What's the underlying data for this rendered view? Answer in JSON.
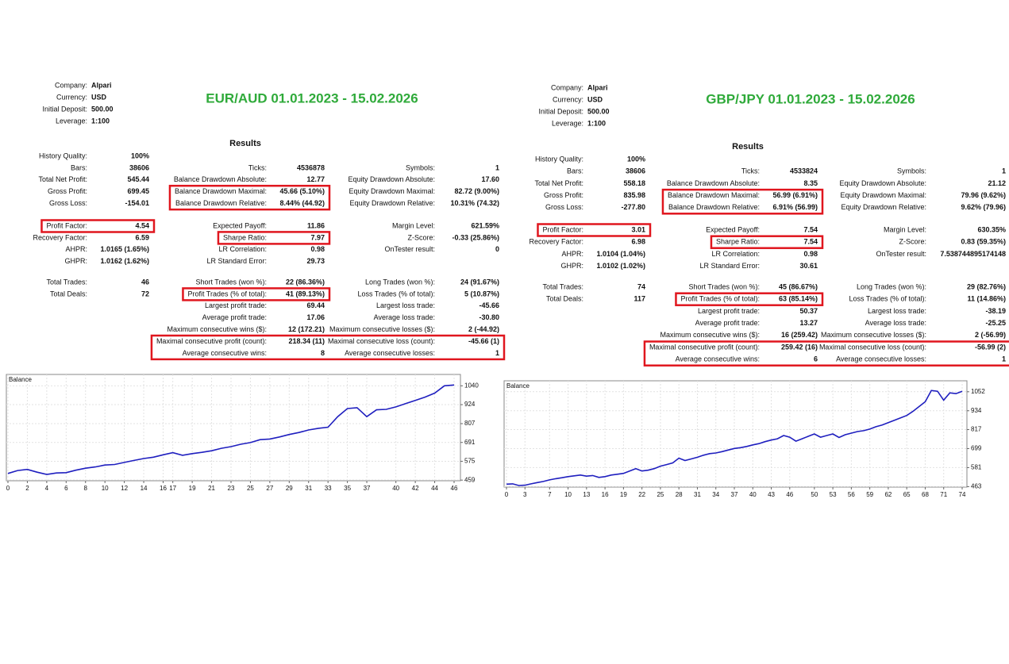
{
  "reports": [
    {
      "title": "EUR/AUD 01.01.2023 - 15.02.2026",
      "info": [
        {
          "label": "Company:",
          "value": "Alpari"
        },
        {
          "label": "Currency:",
          "value": "USD"
        },
        {
          "label": "Initial Deposit:",
          "value": "500.00"
        },
        {
          "label": "Leverage:",
          "value": "1:100"
        }
      ],
      "results_heading": "Results",
      "blocks": [
        [
          {
            "col1": {
              "label": "History Quality:",
              "value": "100%"
            }
          },
          {
            "col1": {
              "label": "Bars:",
              "value": "38606"
            },
            "col2": {
              "label": "Ticks:",
              "value": "4536878"
            },
            "col3": {
              "label": "Symbols:",
              "value": "1"
            }
          },
          {
            "col1": {
              "label": "Total Net Profit:",
              "value": "545.44"
            },
            "col2": {
              "label": "Balance Drawdown Absolute:",
              "value": "12.77"
            },
            "col3": {
              "label": "Equity Drawdown Absolute:",
              "value": "17.60"
            }
          },
          {
            "col1": {
              "label": "Gross Profit:",
              "value": "699.45"
            },
            "col2": {
              "label": "Balance Drawdown Maximal:",
              "value": "45.66 (5.10%)",
              "highlight": true
            },
            "col3": {
              "label": "Equity Drawdown Maximal:",
              "value": "82.72 (9.00%)"
            }
          },
          {
            "col1": {
              "label": "Gross Loss:",
              "value": "-154.01"
            },
            "col2": {
              "label": "Balance Drawdown Relative:",
              "value": "8.44% (44.92)",
              "highlight": true
            },
            "col3": {
              "label": "Equity Drawdown Relative:",
              "value": "10.31% (74.32)"
            }
          }
        ],
        [
          {
            "col1": {
              "label": "Profit Factor:",
              "value": "4.54",
              "highlight": true
            },
            "col2": {
              "label": "Expected Payoff:",
              "value": "11.86"
            },
            "col3": {
              "label": "Margin Level:",
              "value": "621.59%"
            }
          },
          {
            "col1": {
              "label": "Recovery Factor:",
              "value": "6.59"
            },
            "col2": {
              "label": "Sharpe Ratio:",
              "value": "7.97",
              "highlight": true
            },
            "col3": {
              "label": "Z-Score:",
              "value": "-0.33 (25.86%)"
            }
          },
          {
            "col1": {
              "label": "AHPR:",
              "value": "1.0165 (1.65%)"
            },
            "col2": {
              "label": "LR Correlation:",
              "value": "0.98"
            },
            "col3": {
              "label": "OnTester result:",
              "value": "0"
            }
          },
          {
            "col1": {
              "label": "GHPR:",
              "value": "1.0162 (1.62%)"
            },
            "col2": {
              "label": "LR Standard Error:",
              "value": "29.73"
            }
          }
        ],
        [
          {
            "col1": {
              "label": "Total Trades:",
              "value": "46"
            },
            "col2": {
              "label": "Short Trades (won %):",
              "value": "22 (86.36%)"
            },
            "col3": {
              "label": "Long Trades (won %):",
              "value": "24 (91.67%)"
            }
          },
          {
            "col1": {
              "label": "Total Deals:",
              "value": "72"
            },
            "col2": {
              "label": "Profit Trades (% of total):",
              "value": "41 (89.13%)",
              "highlight": true
            },
            "col3": {
              "label": "Loss Trades (% of total):",
              "value": "5 (10.87%)"
            }
          },
          {
            "col2": {
              "label": "Largest profit trade:",
              "value": "69.44"
            },
            "col3": {
              "label": "Largest loss trade:",
              "value": "-45.66"
            }
          },
          {
            "col2": {
              "label": "Average profit trade:",
              "value": "17.06"
            },
            "col3": {
              "label": "Average loss trade:",
              "value": "-30.80"
            }
          },
          {
            "col2": {
              "label": "Maximum consecutive wins ($):",
              "value": "12 (172.21)"
            },
            "col3": {
              "label": "Maximum consecutive losses ($):",
              "value": "2 (-44.92)"
            }
          },
          {
            "col2": {
              "label": "Maximal consecutive profit (count):",
              "value": "218.34 (11)",
              "highlight": true
            },
            "col3": {
              "label": "Maximal consecutive loss (count):",
              "value": "-45.66 (1)",
              "highlight": true
            }
          },
          {
            "col2": {
              "label": "Average consecutive wins:",
              "value": "8",
              "highlight": true
            },
            "col3": {
              "label": "Average consecutive losses:",
              "value": "1",
              "highlight": true
            }
          }
        ]
      ],
      "chart": {
        "type": "line",
        "label": "Balance",
        "color": "#1f1fbf",
        "values": [
          500,
          518,
          525,
          508,
          494,
          503,
          505,
          520,
          532,
          540,
          552,
          555,
          568,
          580,
          592,
          600,
          615,
          628,
          612,
          622,
          630,
          640,
          655,
          665,
          680,
          690,
          708,
          712,
          725,
          740,
          752,
          768,
          778,
          785,
          850,
          900,
          905,
          850,
          892,
          895,
          910,
          930,
          950,
          970,
          995,
          1040,
          1045
        ],
        "xlim": [
          0,
          46
        ],
        "xticks": [
          0,
          2,
          4,
          6,
          8,
          10,
          12,
          14,
          16,
          17,
          19,
          21,
          23,
          25,
          27,
          29,
          31,
          33,
          35,
          37,
          40,
          42,
          44,
          46
        ],
        "ylim": [
          455,
          1110
        ],
        "yticks": [
          459,
          575,
          691,
          807,
          924,
          1040
        ],
        "grid": true
      }
    },
    {
      "title": "GBP/JPY 01.01.2023 - 15.02.2026",
      "info": [
        {
          "label": "Company:",
          "value": "Alpari"
        },
        {
          "label": "Currency:",
          "value": "USD"
        },
        {
          "label": "Initial Deposit:",
          "value": "500.00"
        },
        {
          "label": "Leverage:",
          "value": "1:100"
        }
      ],
      "results_heading": "Results",
      "blocks": [
        [
          {
            "col1": {
              "label": "History Quality:",
              "value": "100%"
            }
          },
          {
            "col1": {
              "label": "Bars:",
              "value": "38606"
            },
            "col2": {
              "label": "Ticks:",
              "value": "4533824"
            },
            "col3": {
              "label": "Symbols:",
              "value": "1"
            }
          },
          {
            "col1": {
              "label": "Total Net Profit:",
              "value": "558.18"
            },
            "col2": {
              "label": "Balance Drawdown Absolute:",
              "value": "8.35"
            },
            "col3": {
              "label": "Equity Drawdown Absolute:",
              "value": "21.12"
            }
          },
          {
            "col1": {
              "label": "Gross Profit:",
              "value": "835.98"
            },
            "col2": {
              "label": "Balance Drawdown Maximal:",
              "value": "56.99 (6.91%)",
              "highlight": true
            },
            "col3": {
              "label": "Equity Drawdown Maximal:",
              "value": "79.96 (9.62%)"
            }
          },
          {
            "col1": {
              "label": "Gross Loss:",
              "value": "-277.80"
            },
            "col2": {
              "label": "Balance Drawdown Relative:",
              "value": "6.91% (56.99)",
              "highlight": true
            },
            "col3": {
              "label": "Equity Drawdown Relative:",
              "value": "9.62% (79.96)"
            }
          }
        ],
        [
          {
            "col1": {
              "label": "Profit Factor:",
              "value": "3.01",
              "highlight": true
            },
            "col2": {
              "label": "Expected Payoff:",
              "value": "7.54"
            },
            "col3": {
              "label": "Margin Level:",
              "value": "630.35%"
            }
          },
          {
            "col1": {
              "label": "Recovery Factor:",
              "value": "6.98"
            },
            "col2": {
              "label": "Sharpe Ratio:",
              "value": "7.54",
              "highlight": true
            },
            "col3": {
              "label": "Z-Score:",
              "value": "0.83 (59.35%)"
            }
          },
          {
            "col1": {
              "label": "AHPR:",
              "value": "1.0104 (1.04%)"
            },
            "col2": {
              "label": "LR Correlation:",
              "value": "0.98"
            },
            "col3": {
              "label": "OnTester result:",
              "value": "7.538744895174148"
            }
          },
          {
            "col1": {
              "label": "GHPR:",
              "value": "1.0102 (1.02%)"
            },
            "col2": {
              "label": "LR Standard Error:",
              "value": "30.61"
            }
          }
        ],
        [
          {
            "col1": {
              "label": "Total Trades:",
              "value": "74"
            },
            "col2": {
              "label": "Short Trades (won %):",
              "value": "45 (86.67%)"
            },
            "col3": {
              "label": "Long Trades (won %):",
              "value": "29 (82.76%)"
            }
          },
          {
            "col1": {
              "label": "Total Deals:",
              "value": "117"
            },
            "col2": {
              "label": "Profit Trades (% of total):",
              "value": "63 (85.14%)",
              "highlight": true
            },
            "col3": {
              "label": "Loss Trades (% of total):",
              "value": "11 (14.86%)"
            }
          },
          {
            "col2": {
              "label": "Largest profit trade:",
              "value": "50.37"
            },
            "col3": {
              "label": "Largest loss trade:",
              "value": "-38.19"
            }
          },
          {
            "col2": {
              "label": "Average profit trade:",
              "value": "13.27"
            },
            "col3": {
              "label": "Average loss trade:",
              "value": "-25.25"
            }
          },
          {
            "col2": {
              "label": "Maximum consecutive wins ($):",
              "value": "16 (259.42)"
            },
            "col3": {
              "label": "Maximum consecutive losses ($):",
              "value": "2 (-56.99)"
            }
          },
          {
            "col2": {
              "label": "Maximal consecutive profit (count):",
              "value": "259.42 (16)",
              "highlight": true
            },
            "col3": {
              "label": "Maximal consecutive loss (count):",
              "value": "-56.99 (2)",
              "highlight": true
            }
          },
          {
            "col2": {
              "label": "Average consecutive wins:",
              "value": "6",
              "highlight": true
            },
            "col3": {
              "label": "Average consecutive losses:",
              "value": "1",
              "highlight": true
            }
          }
        ]
      ],
      "chart": {
        "type": "line",
        "label": "Balance",
        "color": "#1f1fbf",
        "values": [
          478,
          480,
          470,
          472,
          480,
          488,
          495,
          505,
          512,
          518,
          525,
          530,
          535,
          528,
          532,
          520,
          525,
          535,
          540,
          545,
          560,
          575,
          560,
          565,
          575,
          590,
          600,
          610,
          640,
          625,
          635,
          645,
          658,
          668,
          672,
          680,
          690,
          700,
          705,
          712,
          722,
          730,
          742,
          752,
          760,
          780,
          770,
          745,
          760,
          775,
          790,
          770,
          780,
          790,
          768,
          785,
          795,
          805,
          810,
          820,
          835,
          845,
          860,
          875,
          890,
          905,
          930,
          960,
          990,
          1060,
          1055,
          1000,
          1045,
          1040,
          1055
        ],
        "xlim": [
          0,
          74
        ],
        "xticks": [
          0,
          3,
          7,
          10,
          13,
          16,
          19,
          22,
          25,
          28,
          31,
          34,
          37,
          40,
          43,
          46,
          50,
          53,
          56,
          59,
          62,
          65,
          68,
          71,
          74
        ],
        "ylim": [
          460,
          1120
        ],
        "yticks": [
          463,
          581,
          699,
          817,
          934,
          1052
        ],
        "grid": true
      }
    }
  ]
}
